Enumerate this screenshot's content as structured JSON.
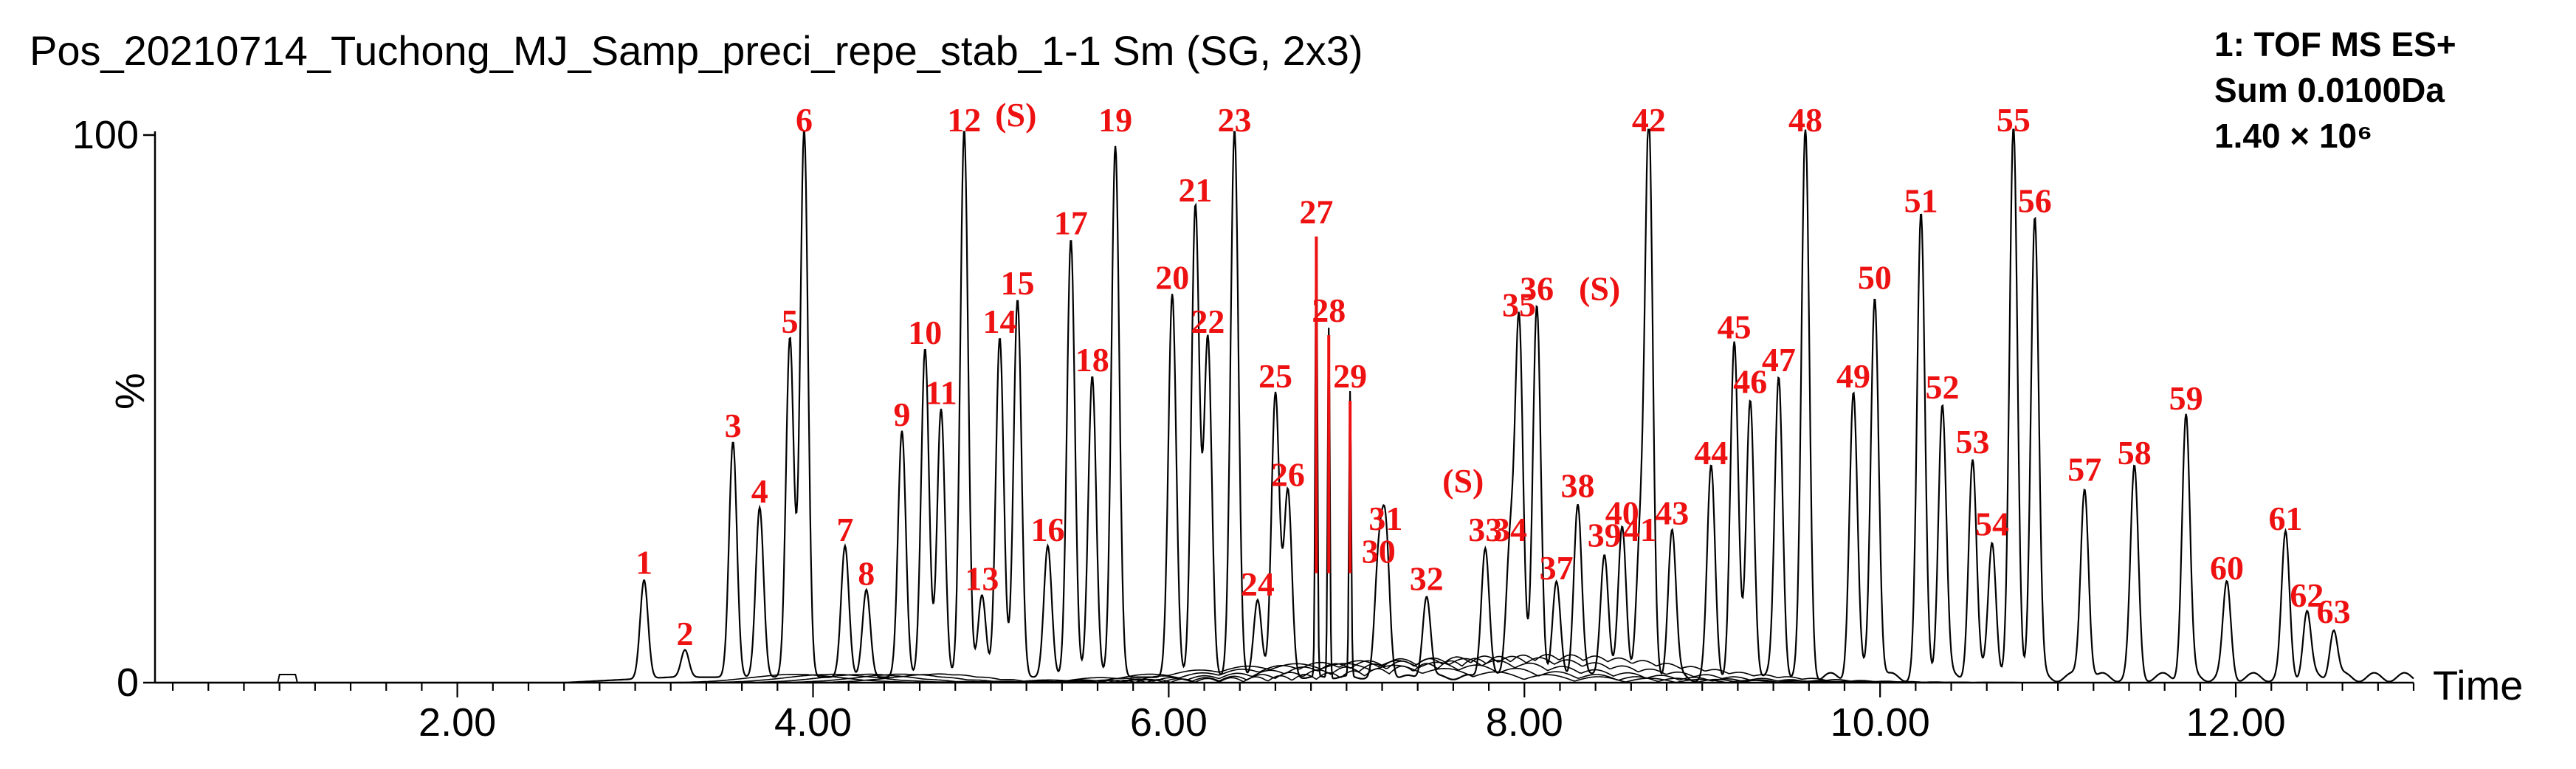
{
  "chart_data": {
    "type": "line",
    "title": "Pos_20210714_Tuchong_MJ_Samp_preci_repe_stab_1-1 Sm (SG, 2x3)",
    "info_lines": [
      "1: TOF MS ES+",
      "Sum 0.0100Da",
      "1.40 × 10⁶"
    ],
    "xlabel": "Time",
    "ylabel": "%",
    "xlim": [
      0.3,
      13.0
    ],
    "ylim": [
      0,
      100
    ],
    "x_ticks": [
      {
        "value": 2,
        "label": "2.00"
      },
      {
        "value": 4,
        "label": "4.00"
      },
      {
        "value": 6,
        "label": "6.00"
      },
      {
        "value": 8,
        "label": "8.00"
      },
      {
        "value": 10,
        "label": "10.00"
      },
      {
        "value": 12,
        "label": "12.00"
      }
    ],
    "y_ticks": [
      {
        "value": 0,
        "label": "0"
      },
      {
        "value": 100,
        "label": "100"
      }
    ],
    "peak_label_color": "#ee1111",
    "trace_color": "#000000",
    "peaks": [
      {
        "id": "1",
        "label": "1",
        "x": 3.05,
        "y": 18
      },
      {
        "id": "2",
        "label": "2",
        "x": 3.28,
        "y": 5
      },
      {
        "id": "3",
        "label": "3",
        "x": 3.55,
        "y": 43
      },
      {
        "id": "4",
        "label": "4",
        "x": 3.7,
        "y": 31
      },
      {
        "id": "5",
        "label": "5",
        "x": 3.87,
        "y": 62
      },
      {
        "id": "6",
        "label": "6",
        "x": 3.95,
        "y": 100
      },
      {
        "id": "7",
        "label": "7",
        "x": 4.18,
        "y": 24
      },
      {
        "id": "8",
        "label": "8",
        "x": 4.3,
        "y": 16
      },
      {
        "id": "9",
        "label": "9",
        "x": 4.5,
        "y": 45
      },
      {
        "id": "10",
        "label": "10",
        "x": 4.63,
        "y": 60
      },
      {
        "id": "11",
        "label": "11",
        "x": 4.72,
        "y": 49
      },
      {
        "id": "12",
        "label": "12",
        "x": 4.85,
        "y": 100
      },
      {
        "id": "13",
        "label": "13",
        "x": 4.95,
        "y": 15
      },
      {
        "id": "14",
        "label": "14",
        "x": 5.05,
        "y": 62
      },
      {
        "id": "15",
        "label": "15",
        "x": 5.15,
        "y": 69
      },
      {
        "id": "16",
        "label": "16",
        "x": 5.32,
        "y": 24
      },
      {
        "id": "17",
        "label": "17",
        "x": 5.45,
        "y": 80
      },
      {
        "id": "18",
        "label": "18",
        "x": 5.57,
        "y": 55
      },
      {
        "id": "19",
        "label": "19",
        "x": 5.7,
        "y": 97
      },
      {
        "id": "20",
        "label": "20",
        "x": 6.02,
        "y": 70
      },
      {
        "id": "21",
        "label": "21",
        "x": 6.15,
        "y": 86
      },
      {
        "id": "22",
        "label": "22",
        "x": 6.22,
        "y": 62
      },
      {
        "id": "23",
        "label": "23",
        "x": 6.37,
        "y": 100
      },
      {
        "id": "24",
        "label": "24",
        "x": 6.5,
        "y": 14
      },
      {
        "id": "25",
        "label": "25",
        "x": 6.6,
        "y": 52
      },
      {
        "id": "26",
        "label": "26",
        "x": 6.67,
        "y": 34
      },
      {
        "id": "27",
        "label": "27",
        "x": 6.83,
        "y": 82
      },
      {
        "id": "28",
        "label": "28",
        "x": 6.9,
        "y": 64
      },
      {
        "id": "29",
        "label": "29",
        "x": 7.02,
        "y": 52
      },
      {
        "id": "30",
        "label": "30",
        "x": 7.18,
        "y": 20
      },
      {
        "id": "31",
        "label": "31",
        "x": 7.22,
        "y": 26
      },
      {
        "id": "32",
        "label": "32",
        "x": 7.45,
        "y": 15
      },
      {
        "id": "33",
        "label": "33",
        "x": 7.78,
        "y": 24
      },
      {
        "id": "34",
        "label": "34",
        "x": 7.92,
        "y": 24
      },
      {
        "id": "35",
        "label": "35",
        "x": 7.97,
        "y": 65
      },
      {
        "id": "36",
        "label": "36",
        "x": 8.07,
        "y": 68
      },
      {
        "id": "37",
        "label": "37",
        "x": 8.18,
        "y": 17
      },
      {
        "id": "38",
        "label": "38",
        "x": 8.3,
        "y": 32
      },
      {
        "id": "39",
        "label": "39",
        "x": 8.45,
        "y": 23
      },
      {
        "id": "40",
        "label": "40",
        "x": 8.55,
        "y": 27
      },
      {
        "id": "41",
        "label": "41",
        "x": 8.65,
        "y": 24
      },
      {
        "id": "42",
        "label": "42",
        "x": 8.7,
        "y": 100
      },
      {
        "id": "43",
        "label": "43",
        "x": 8.83,
        "y": 27
      },
      {
        "id": "44",
        "label": "44",
        "x": 9.05,
        "y": 38
      },
      {
        "id": "45",
        "label": "45",
        "x": 9.18,
        "y": 61
      },
      {
        "id": "46",
        "label": "46",
        "x": 9.27,
        "y": 51
      },
      {
        "id": "47",
        "label": "47",
        "x": 9.43,
        "y": 55
      },
      {
        "id": "48",
        "label": "48",
        "x": 9.58,
        "y": 100
      },
      {
        "id": "49",
        "label": "49",
        "x": 9.85,
        "y": 52
      },
      {
        "id": "50",
        "label": "50",
        "x": 9.97,
        "y": 70
      },
      {
        "id": "51",
        "label": "51",
        "x": 10.23,
        "y": 84
      },
      {
        "id": "52",
        "label": "52",
        "x": 10.35,
        "y": 50
      },
      {
        "id": "53",
        "label": "53",
        "x": 10.52,
        "y": 40
      },
      {
        "id": "54",
        "label": "54",
        "x": 10.63,
        "y": 25
      },
      {
        "id": "55",
        "label": "55",
        "x": 10.75,
        "y": 100
      },
      {
        "id": "56",
        "label": "56",
        "x": 10.87,
        "y": 84
      },
      {
        "id": "57",
        "label": "57",
        "x": 11.15,
        "y": 35
      },
      {
        "id": "58",
        "label": "58",
        "x": 11.43,
        "y": 38
      },
      {
        "id": "59",
        "label": "59",
        "x": 11.72,
        "y": 48
      },
      {
        "id": "60",
        "label": "60",
        "x": 11.95,
        "y": 17
      },
      {
        "id": "61",
        "label": "61",
        "x": 12.28,
        "y": 26
      },
      {
        "id": "62",
        "label": "62",
        "x": 12.4,
        "y": 12
      },
      {
        "id": "63",
        "label": "63",
        "x": 12.55,
        "y": 9
      }
    ],
    "annotations": [
      {
        "id": "s-12",
        "label": "(S)",
        "near_peak": "12"
      },
      {
        "id": "s-36",
        "label": "(S)",
        "near_peak": "36"
      },
      {
        "id": "s-33",
        "label": "(S)",
        "near_peak": "33"
      }
    ]
  }
}
